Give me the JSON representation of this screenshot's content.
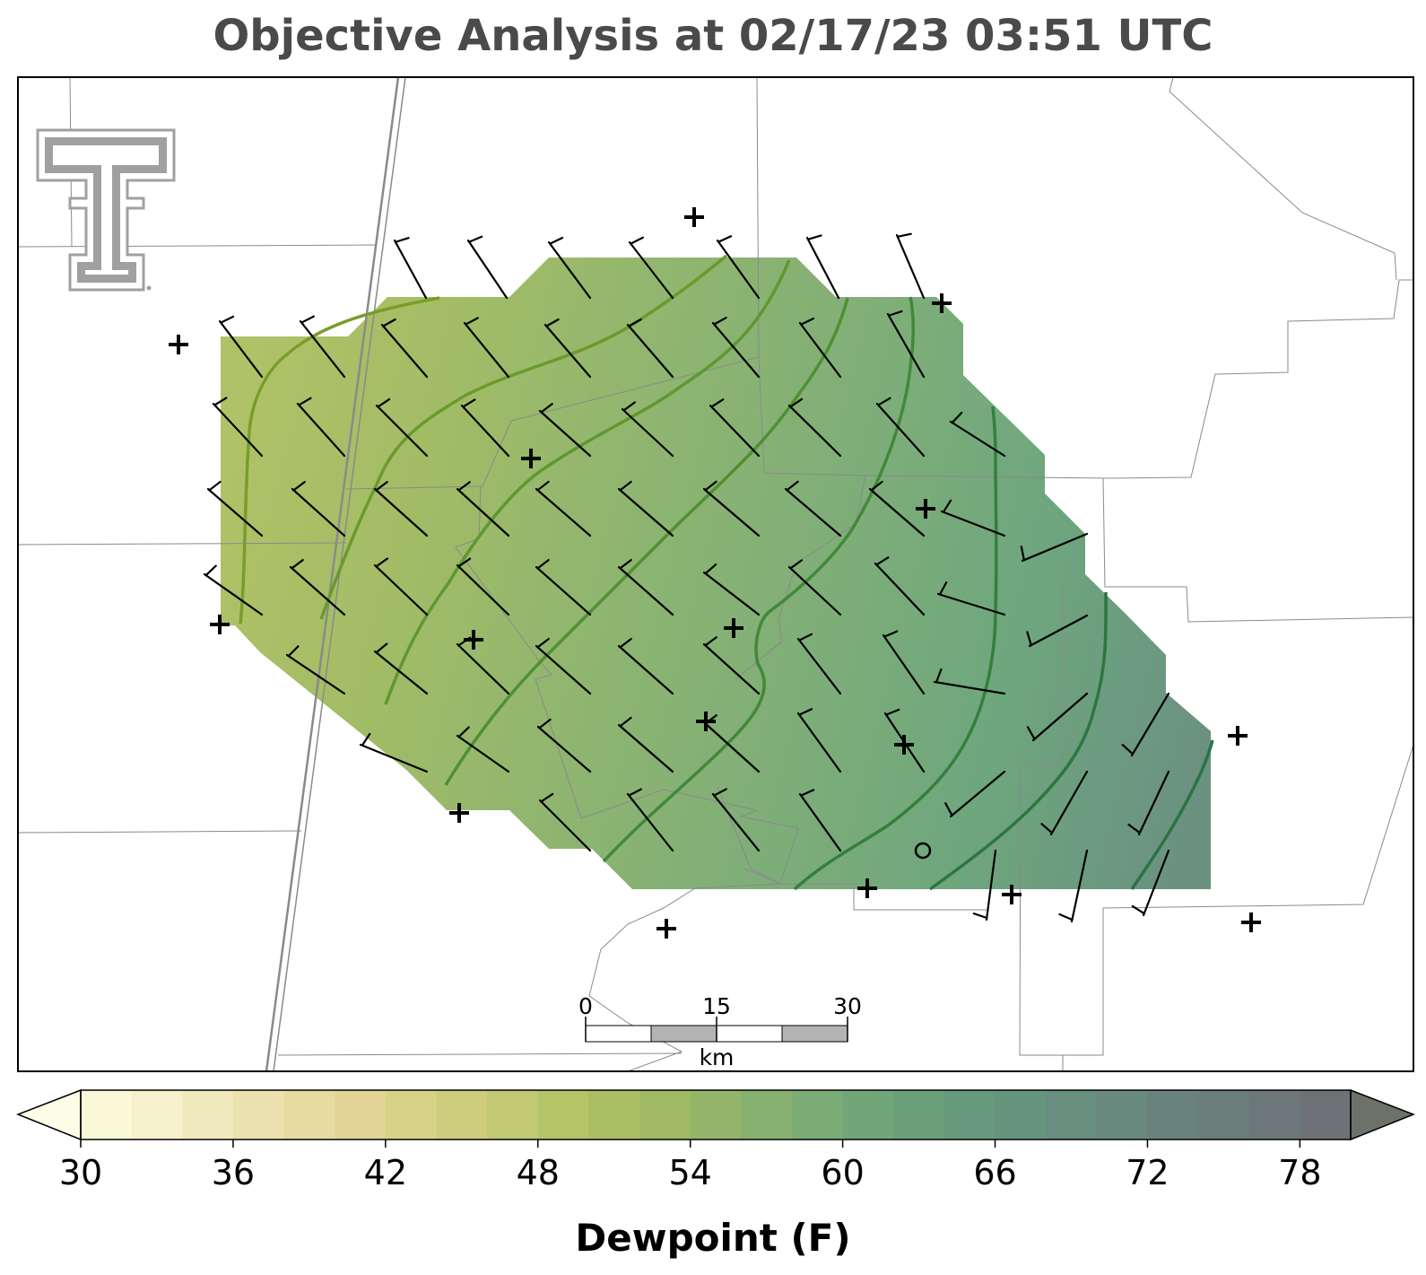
{
  "title": "Objective Analysis at 02/17/23 03:51 UTC",
  "logo": {
    "name": "texas-tech-double-t-logo",
    "color": "#a0a0a0"
  },
  "scale_bar": {
    "ticks": [
      "0",
      "15",
      "30"
    ],
    "unit": "km"
  },
  "colorbar": {
    "label": "Dewpoint (F)",
    "min": 30,
    "max": 80,
    "step": 2,
    "extend": "both",
    "tick_values": [
      30,
      36,
      42,
      48,
      54,
      60,
      66,
      72,
      78
    ],
    "tick_labels": [
      "30",
      "36",
      "42",
      "48",
      "54",
      "60",
      "66",
      "72",
      "78"
    ],
    "colors": [
      "#fbf8d8",
      "#f6f1cc",
      "#f1eabf",
      "#ece2b0",
      "#e7dba2",
      "#e2d596",
      "#d8d289",
      "#cdcd7d",
      "#c2c972",
      "#b6c468",
      "#aabf63",
      "#9fba63",
      "#93b56a",
      "#87b170",
      "#7cac75",
      "#72a678",
      "#6ba07a",
      "#679a7c",
      "#66947d",
      "#678e7e",
      "#69887e",
      "#6a827d",
      "#6c7d7c",
      "#6d7779",
      "#6e7276"
    ],
    "under_color": "#fdfce6",
    "over_color": "#6c716a"
  },
  "analysis": {
    "field": "Dewpoint (F)",
    "contour_interval": 3,
    "contour_levels_shown": [
      51,
      54,
      57,
      60,
      63,
      66,
      69,
      72
    ],
    "missing_station_marker": "+",
    "calm_marker": "o"
  },
  "icons": {
    "station": "plus-marker",
    "calm": "circle-marker",
    "wind": "wind-barb"
  }
}
